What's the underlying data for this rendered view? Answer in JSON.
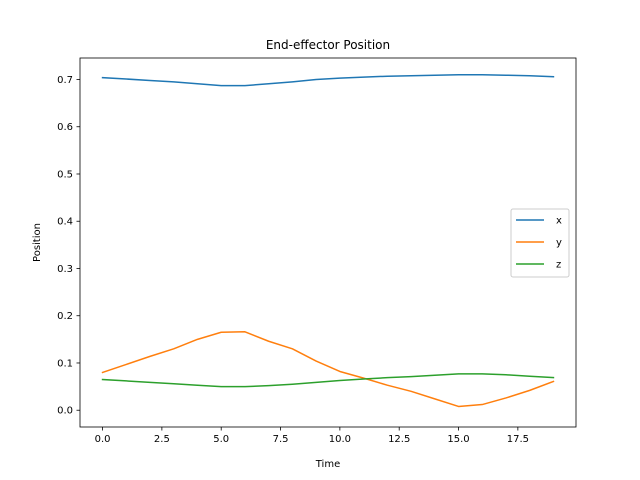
{
  "chart_data": {
    "type": "line",
    "title": "End-effector Position",
    "xlabel": "Time",
    "ylabel": "Position",
    "xlim": [
      -0.95,
      19.95
    ],
    "ylim": [
      -0.0355,
      0.7455
    ],
    "xticks": [
      0.0,
      2.5,
      5.0,
      7.5,
      10.0,
      12.5,
      15.0,
      17.5
    ],
    "xtick_labels": [
      "0.0",
      "2.5",
      "5.0",
      "7.5",
      "10.0",
      "12.5",
      "15.0",
      "17.5"
    ],
    "yticks": [
      0.0,
      0.1,
      0.2,
      0.3,
      0.4,
      0.5,
      0.6,
      0.7
    ],
    "ytick_labels": [
      "0.0",
      "0.1",
      "0.2",
      "0.3",
      "0.4",
      "0.5",
      "0.6",
      "0.7"
    ],
    "grid": false,
    "legend_position": "center-right",
    "x": [
      0,
      1,
      2,
      3,
      4,
      5,
      6,
      7,
      8,
      9,
      10,
      11,
      12,
      13,
      14,
      15,
      16,
      17,
      18,
      19
    ],
    "series": [
      {
        "name": "x",
        "color": "#1f77b4",
        "values": [
          0.704,
          0.701,
          0.698,
          0.695,
          0.691,
          0.687,
          0.687,
          0.691,
          0.695,
          0.7,
          0.703,
          0.705,
          0.707,
          0.708,
          0.709,
          0.71,
          0.71,
          0.709,
          0.708,
          0.706
        ]
      },
      {
        "name": "y",
        "color": "#ff7f0e",
        "values": [
          0.08,
          0.097,
          0.114,
          0.13,
          0.15,
          0.165,
          0.166,
          0.146,
          0.13,
          0.104,
          0.082,
          0.068,
          0.053,
          0.04,
          0.024,
          0.008,
          0.012,
          0.026,
          0.042,
          0.061
        ]
      },
      {
        "name": "z",
        "color": "#2ca02c",
        "values": [
          0.065,
          0.062,
          0.059,
          0.056,
          0.053,
          0.05,
          0.05,
          0.052,
          0.055,
          0.059,
          0.063,
          0.066,
          0.069,
          0.071,
          0.074,
          0.077,
          0.077,
          0.075,
          0.072,
          0.069
        ]
      }
    ]
  }
}
